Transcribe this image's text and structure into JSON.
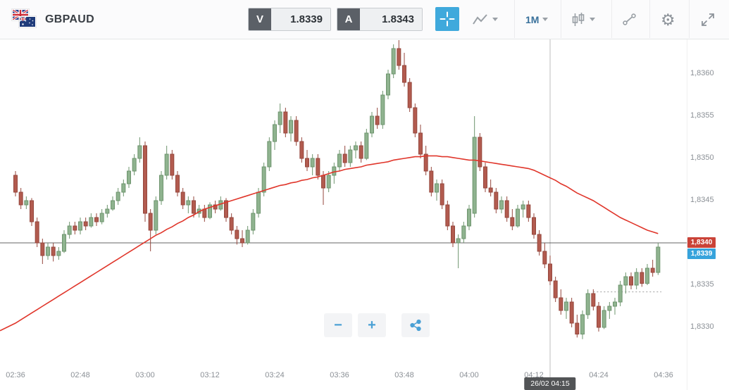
{
  "header": {
    "symbol": "GBPAUD",
    "sell": {
      "label": "V",
      "value": "1.8339"
    },
    "buy": {
      "label": "A",
      "value": "1.8343"
    },
    "timeframe": {
      "label": "1M"
    }
  },
  "controls": {
    "zoom_out": "−",
    "zoom_in": "+"
  },
  "colors": {
    "up_fill": "#8fb38f",
    "up_stroke": "#6e946e",
    "down_fill": "#b25b4f",
    "down_stroke": "#95473d",
    "ma_line": "#e0362b",
    "price_line": "#4a4a4a",
    "crosshair": "#bcbcbc",
    "dashed_level": "#9a9a9a",
    "current_badge_bg": "#ca4338",
    "bid_badge_bg": "#36a3dc",
    "accent_blue": "#3fa9dc"
  },
  "chart_data": {
    "type": "candlestick",
    "symbol": "GBPAUD",
    "interval": "1M",
    "price_base": 1.83,
    "unit_pip": 0.0001,
    "ylim": [
      1.8327,
      1.8366
    ],
    "time_axis": {
      "labels": [
        "02:36",
        "02:48",
        "03:00",
        "03:12",
        "03:24",
        "03:36",
        "03:48",
        "04:00",
        "04:12",
        "04:24",
        "04:36"
      ],
      "step_minutes": 12
    },
    "price_axis": {
      "labels": [
        {
          "text": "1,8360",
          "value": 1.836
        },
        {
          "text": "1,8355",
          "value": 1.8355
        },
        {
          "text": "1,8350",
          "value": 1.835
        },
        {
          "text": "1,8345",
          "value": 1.8345
        },
        {
          "text": "1,8335",
          "value": 1.8335
        },
        {
          "text": "1,8330",
          "value": 1.833
        }
      ]
    },
    "current_price_badge": {
      "text": "1,8340",
      "value": 1.834
    },
    "bid_badge": {
      "text": "1,8339",
      "value": 1.8339
    },
    "crosshair": {
      "index": 99,
      "time": "04:15",
      "label": "26/02 04:15"
    },
    "session_low_dash_pips": 34.2,
    "candles_ohlc_pips": [
      [
        48,
        48.5,
        45.5,
        46
      ],
      [
        46,
        46.5,
        44,
        44.5
      ],
      [
        44.5,
        45.5,
        44,
        45
      ],
      [
        45,
        45.3,
        42,
        42.5
      ],
      [
        42.5,
        43,
        39.5,
        40
      ],
      [
        40,
        40.5,
        37.5,
        38.5
      ],
      [
        38.5,
        40,
        38,
        39.5
      ],
      [
        39.5,
        40,
        37.8,
        38.5
      ],
      [
        38.5,
        39.5,
        38,
        39
      ],
      [
        39,
        41.5,
        38.8,
        41
      ],
      [
        41,
        42.5,
        40.5,
        42
      ],
      [
        42,
        42.5,
        41,
        41.5
      ],
      [
        41.5,
        43,
        41,
        42.5
      ],
      [
        42.5,
        43,
        41.5,
        42
      ],
      [
        42,
        43.5,
        41.8,
        43
      ],
      [
        43,
        43.5,
        42,
        42.5
      ],
      [
        42.5,
        44,
        42.2,
        43.5
      ],
      [
        43.5,
        44.5,
        43,
        44
      ],
      [
        44,
        45.5,
        43.8,
        45
      ],
      [
        45,
        46.5,
        44.5,
        46
      ],
      [
        46,
        47.5,
        45.5,
        47
      ],
      [
        47,
        49,
        46.5,
        48.5
      ],
      [
        48.5,
        50.5,
        48,
        50
      ],
      [
        50,
        52.5,
        49.5,
        51.5
      ],
      [
        51.5,
        52,
        42.5,
        43.5
      ],
      [
        43.5,
        44,
        39,
        41.5
      ],
      [
        41.5,
        45.5,
        41,
        45
      ],
      [
        45,
        48.5,
        44.5,
        48
      ],
      [
        48,
        51.5,
        47.5,
        50.5
      ],
      [
        50.5,
        51,
        47.5,
        48
      ],
      [
        48,
        48.5,
        45.5,
        46
      ],
      [
        46,
        46.5,
        44,
        44.5
      ],
      [
        44.5,
        45.5,
        43.5,
        45
      ],
      [
        45,
        45.5,
        43,
        43.5
      ],
      [
        43.5,
        44.5,
        43,
        44
      ],
      [
        44,
        44.5,
        42.5,
        43
      ],
      [
        43,
        44.8,
        42.8,
        44.5
      ],
      [
        44.5,
        45,
        43.5,
        44
      ],
      [
        44,
        45.5,
        43.8,
        45
      ],
      [
        45,
        45.3,
        42.5,
        43
      ],
      [
        43,
        43.5,
        41,
        41.5
      ],
      [
        41.5,
        42,
        39.8,
        40.5
      ],
      [
        40.5,
        41.5,
        39.5,
        40
      ],
      [
        40,
        42,
        39.8,
        41.5
      ],
      [
        41.5,
        44,
        41,
        43.5
      ],
      [
        43.5,
        46.5,
        43,
        46
      ],
      [
        46,
        49.5,
        45.5,
        49
      ],
      [
        49,
        52.5,
        48.5,
        52
      ],
      [
        52,
        54.5,
        51,
        54
      ],
      [
        54,
        56.5,
        53,
        55.5
      ],
      [
        55.5,
        56,
        52.5,
        53
      ],
      [
        53,
        55,
        52,
        54.5
      ],
      [
        54.5,
        55,
        51.5,
        52
      ],
      [
        52,
        52.5,
        49.5,
        50
      ],
      [
        50,
        51,
        48.5,
        49
      ],
      [
        49,
        50.5,
        48,
        50
      ],
      [
        50,
        50.5,
        47.5,
        48
      ],
      [
        48,
        48.5,
        44.5,
        46.5
      ],
      [
        46.5,
        48.5,
        46,
        48
      ],
      [
        48,
        49.5,
        47,
        49
      ],
      [
        49,
        51,
        48.5,
        50.5
      ],
      [
        50.5,
        51.5,
        49,
        49.5
      ],
      [
        49.5,
        51.5,
        49,
        51
      ],
      [
        51,
        52,
        50,
        51.5
      ],
      [
        51.5,
        52,
        49.5,
        50
      ],
      [
        50,
        53.5,
        49.8,
        53
      ],
      [
        53,
        55.5,
        52.5,
        55
      ],
      [
        55,
        56,
        53.5,
        54
      ],
      [
        54,
        58,
        53.5,
        57.5
      ],
      [
        57.5,
        60.5,
        57,
        60
      ],
      [
        60,
        63.5,
        59.5,
        63
      ],
      [
        63,
        64,
        60.5,
        61
      ],
      [
        61,
        62.5,
        58.5,
        59
      ],
      [
        59,
        59.5,
        55.5,
        56
      ],
      [
        56,
        56.5,
        52.5,
        53
      ],
      [
        53,
        54,
        50,
        50.5
      ],
      [
        50.5,
        51.5,
        48,
        48.5
      ],
      [
        48.5,
        49,
        45.5,
        46
      ],
      [
        46,
        47.5,
        45,
        47
      ],
      [
        47,
        47.5,
        44,
        44.5
      ],
      [
        44.5,
        45,
        41.5,
        42
      ],
      [
        42,
        42.5,
        39.5,
        40
      ],
      [
        40,
        41,
        37,
        40.5
      ],
      [
        40.5,
        42.5,
        40,
        42
      ],
      [
        42,
        44.5,
        41.5,
        44
      ],
      [
        43.5,
        55,
        43,
        52.5
      ],
      [
        52.5,
        53,
        48.5,
        49
      ],
      [
        49,
        49.5,
        46,
        46.5
      ],
      [
        46.5,
        47.5,
        45.5,
        46
      ],
      [
        46,
        46.5,
        43.5,
        44
      ],
      [
        44,
        45.5,
        43.5,
        45
      ],
      [
        45,
        45.5,
        42.5,
        43
      ],
      [
        43,
        44,
        41.5,
        42
      ],
      [
        42,
        44.5,
        41.8,
        44
      ],
      [
        44,
        45,
        43,
        44.5
      ],
      [
        44.5,
        45,
        42.5,
        43
      ],
      [
        43,
        43.5,
        40.5,
        41
      ],
      [
        41,
        41.5,
        38.5,
        39
      ],
      [
        39,
        40,
        37,
        37.5
      ],
      [
        37.5,
        38.5,
        35,
        35.5
      ],
      [
        35.5,
        36,
        33,
        33.5
      ],
      [
        33.5,
        34.5,
        31.5,
        32
      ],
      [
        32,
        33.5,
        31,
        33
      ],
      [
        33,
        33.5,
        30,
        30.5
      ],
      [
        30.5,
        31.5,
        28.8,
        29.2
      ],
      [
        29.2,
        32,
        28.6,
        31.5
      ],
      [
        31.5,
        34.5,
        31,
        34
      ],
      [
        34,
        34.5,
        32,
        32.5
      ],
      [
        32.5,
        33,
        29.5,
        30
      ],
      [
        30,
        32.5,
        29.8,
        32
      ],
      [
        32,
        33,
        31,
        32.5
      ],
      [
        32.5,
        33.5,
        31.5,
        33
      ],
      [
        33,
        35.5,
        32.5,
        35
      ],
      [
        35,
        36.5,
        34,
        36
      ],
      [
        36,
        36.5,
        34.5,
        35
      ],
      [
        35,
        37,
        34.5,
        36.5
      ],
      [
        36.5,
        37,
        34.8,
        35.2
      ],
      [
        35.2,
        37.5,
        35,
        37
      ],
      [
        37,
        38,
        36,
        36.5
      ],
      [
        36.5,
        40,
        36.2,
        39.5
      ]
    ],
    "ma_pips": [
      30.5,
      30.9,
      31.3,
      31.7,
      32.1,
      32.5,
      32.9,
      33.3,
      33.7,
      34.1,
      34.5,
      34.9,
      35.3,
      35.7,
      36.1,
      36.5,
      36.9,
      37.3,
      37.7,
      38.1,
      38.5,
      38.9,
      39.3,
      39.7,
      40.1,
      40.5,
      40.9,
      41.2,
      41.6,
      41.9,
      42.3,
      42.6,
      43,
      43.3,
      43.7,
      44,
      44.2,
      44.4,
      44.6,
      44.8,
      45,
      45.2,
      45.4,
      45.6,
      45.8,
      46,
      46.2,
      46.4,
      46.6,
      46.8,
      46.9,
      47.1,
      47.2,
      47.4,
      47.5,
      47.7,
      47.8,
      48,
      48.2,
      48.4,
      48.5,
      48.7,
      48.8,
      48.9,
      49,
      49.2,
      49.3,
      49.4,
      49.5,
      49.6,
      49.8,
      49.9,
      50,
      50.1,
      50.2,
      50.2,
      50.3,
      50.3,
      50.3,
      50.2,
      50.2,
      50.1,
      50,
      49.9,
      49.8,
      49.8,
      49.7,
      49.6,
      49.5,
      49.4,
      49.3,
      49.2,
      49.1,
      49,
      48.9,
      48.8,
      48.6,
      48.3,
      48,
      47.7,
      47.4,
      47,
      46.7,
      46.3,
      45.9,
      45.6,
      45.3,
      45,
      44.6,
      44.2,
      43.8,
      43.4,
      43,
      42.7,
      42.4,
      42.1,
      41.8,
      41.5,
      41.3,
      41.1
    ]
  }
}
